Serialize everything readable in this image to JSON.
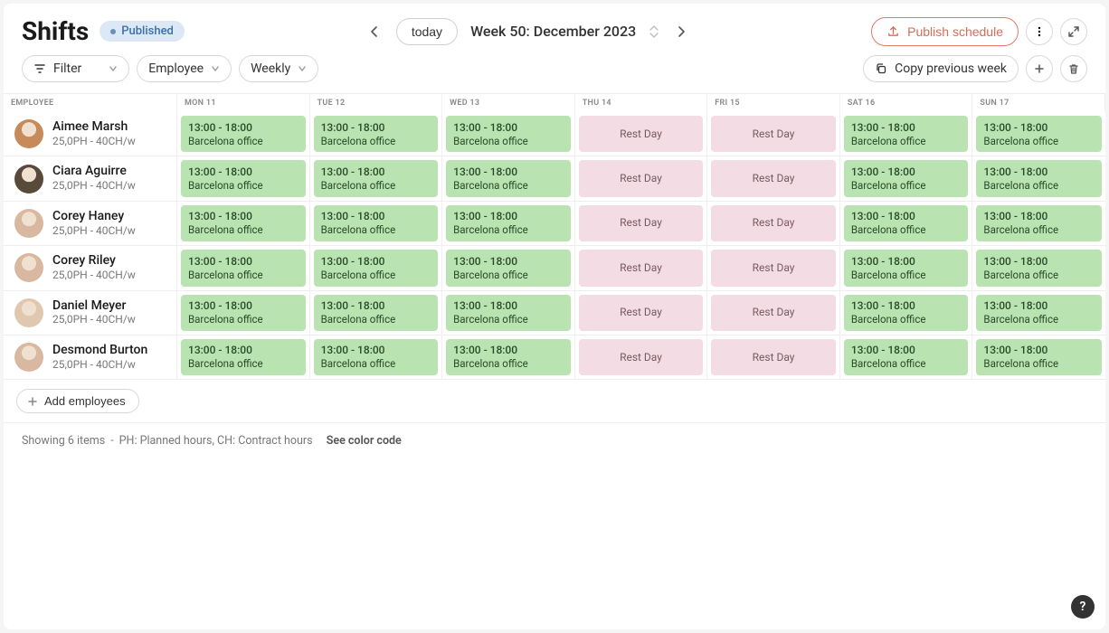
{
  "header": {
    "title": "Shifts",
    "status_badge": "Published",
    "today_label": "today",
    "week_label": "Week 50: December 2023",
    "publish_label": "Publish schedule"
  },
  "toolbar": {
    "filter_label": "Filter",
    "group_label": "Employee",
    "view_label": "Weekly",
    "copy_label": "Copy previous week"
  },
  "columns": {
    "employee_header": "EMPLOYEE",
    "days": [
      "MON 11",
      "TUE 12",
      "WED 13",
      "THU 14",
      "FRI 15",
      "SAT 16",
      "SUN 17"
    ]
  },
  "shift_defaults": {
    "time": "13:00 - 18:00",
    "location": "Barcelona office",
    "rest_label": "Rest Day"
  },
  "colors": {
    "shift_bg": "#b9e3b0",
    "rest_bg": "#f3dce3",
    "badge_bg": "#dce8f5",
    "publish_accent": "#d96a5a"
  },
  "employees": [
    {
      "name": "Aimee Marsh",
      "sub": "25,0PH - 40CH/w",
      "avatar": "#c78a5a",
      "pattern": [
        "shift",
        "shift",
        "shift",
        "rest",
        "rest",
        "shift",
        "shift"
      ]
    },
    {
      "name": "Ciara Aguirre",
      "sub": "25,0PH - 40CH/w",
      "avatar": "#5a4a3a",
      "pattern": [
        "shift",
        "shift",
        "shift",
        "rest",
        "rest",
        "shift",
        "shift"
      ]
    },
    {
      "name": "Corey Haney",
      "sub": "25,0PH - 40CH/w",
      "avatar": "#d8b8a0",
      "pattern": [
        "shift",
        "shift",
        "shift",
        "rest",
        "rest",
        "shift",
        "shift"
      ]
    },
    {
      "name": "Corey Riley",
      "sub": "25,0PH - 40CH/w",
      "avatar": "#d8b8a0",
      "pattern": [
        "shift",
        "shift",
        "shift",
        "rest",
        "rest",
        "shift",
        "shift"
      ]
    },
    {
      "name": "Daniel Meyer",
      "sub": "25,0PH - 40CH/w",
      "avatar": "#e0c8b0",
      "pattern": [
        "shift",
        "shift",
        "shift",
        "rest",
        "rest",
        "shift",
        "shift"
      ]
    },
    {
      "name": "Desmond Burton",
      "sub": "25,0PH - 40CH/w",
      "avatar": "#d8b8a0",
      "pattern": [
        "shift",
        "shift",
        "shift",
        "rest",
        "rest",
        "shift",
        "shift"
      ]
    }
  ],
  "add_employees_label": "Add employees",
  "footer": {
    "showing": "Showing 6 items",
    "legend": "PH: Planned hours, CH: Contract hours",
    "link": "See color code"
  },
  "help_label": "?"
}
